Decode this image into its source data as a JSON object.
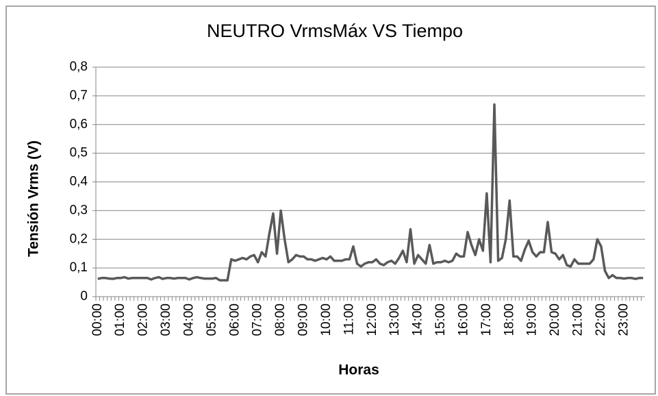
{
  "chart_data": {
    "type": "line",
    "title": "NEUTRO VrmsMáx VS Tiempo",
    "xlabel": "Horas",
    "ylabel": "Tensión Vrms (V)",
    "categories": [
      "00:00",
      null,
      null,
      null,
      null,
      null,
      "01:00",
      null,
      null,
      null,
      null,
      null,
      "02:00",
      null,
      null,
      null,
      null,
      null,
      "03:00",
      null,
      null,
      null,
      null,
      null,
      "04:00",
      null,
      null,
      null,
      null,
      null,
      "05:00",
      null,
      null,
      null,
      null,
      null,
      "06:00",
      null,
      null,
      null,
      null,
      null,
      "07:00",
      null,
      null,
      null,
      null,
      null,
      "08:00",
      null,
      null,
      null,
      null,
      null,
      "09:00",
      null,
      null,
      null,
      null,
      null,
      "10:00",
      null,
      null,
      null,
      null,
      null,
      "11:00",
      null,
      null,
      null,
      null,
      null,
      "12:00",
      null,
      null,
      null,
      null,
      null,
      "13:00",
      null,
      null,
      null,
      null,
      null,
      "14:00",
      null,
      null,
      null,
      null,
      null,
      "15:00",
      null,
      null,
      null,
      null,
      null,
      "16:00",
      null,
      null,
      null,
      null,
      null,
      "17:00",
      null,
      null,
      null,
      null,
      null,
      "18:00",
      null,
      null,
      null,
      null,
      null,
      "19:00",
      null,
      null,
      null,
      null,
      null,
      "20:00",
      null,
      null,
      null,
      null,
      null,
      "21:00",
      null,
      null,
      null,
      null,
      null,
      "22:00",
      null,
      null,
      null,
      null,
      null,
      "23:00",
      null,
      null,
      null,
      null,
      null
    ],
    "series": [
      {
        "name": "NEUTRO VrmsMáx",
        "color": "#595959",
        "values": [
          0.062,
          0.065,
          0.065,
          0.063,
          0.062,
          0.065,
          0.065,
          0.068,
          0.063,
          0.065,
          0.065,
          0.065,
          0.065,
          0.065,
          0.06,
          0.065,
          0.068,
          0.062,
          0.065,
          0.065,
          0.063,
          0.065,
          0.065,
          0.065,
          0.06,
          0.065,
          0.068,
          0.065,
          0.063,
          0.063,
          0.063,
          0.065,
          0.057,
          0.057,
          0.057,
          0.13,
          0.125,
          0.13,
          0.135,
          0.13,
          0.14,
          0.145,
          0.12,
          0.155,
          0.14,
          0.22,
          0.29,
          0.15,
          0.3,
          0.2,
          0.12,
          0.13,
          0.145,
          0.14,
          0.14,
          0.13,
          0.13,
          0.125,
          0.13,
          0.135,
          0.13,
          0.14,
          0.125,
          0.125,
          0.125,
          0.13,
          0.13,
          0.175,
          0.115,
          0.105,
          0.115,
          0.12,
          0.12,
          0.13,
          0.115,
          0.11,
          0.12,
          0.125,
          0.115,
          0.135,
          0.16,
          0.12,
          0.235,
          0.115,
          0.145,
          0.13,
          0.115,
          0.18,
          0.115,
          0.12,
          0.12,
          0.125,
          0.12,
          0.125,
          0.15,
          0.14,
          0.14,
          0.225,
          0.18,
          0.145,
          0.2,
          0.16,
          0.36,
          0.12,
          0.67,
          0.125,
          0.135,
          0.2,
          0.335,
          0.14,
          0.14,
          0.125,
          0.165,
          0.195,
          0.155,
          0.14,
          0.155,
          0.155,
          0.26,
          0.155,
          0.15,
          0.13,
          0.145,
          0.11,
          0.105,
          0.13,
          0.115,
          0.115,
          0.115,
          0.115,
          0.13,
          0.2,
          0.175,
          0.09,
          0.065,
          0.075,
          0.065,
          0.065,
          0.063,
          0.065,
          0.065,
          0.062,
          0.065,
          0.065
        ]
      }
    ],
    "ylim": [
      0,
      0.8
    ],
    "yticks": [
      0,
      {
        "value": 0.1,
        "label": "0,1"
      },
      {
        "value": 0.2,
        "label": "0,2"
      },
      {
        "value": 0.3,
        "label": "0,3"
      },
      {
        "value": 0.4,
        "label": "0,4"
      },
      {
        "value": 0.5,
        "label": "0,5"
      },
      {
        "value": 0.6,
        "label": "0,6"
      },
      {
        "value": 0.7,
        "label": "0,7"
      },
      {
        "value": 0.8,
        "label": "0,8"
      }
    ],
    "grid": true
  }
}
